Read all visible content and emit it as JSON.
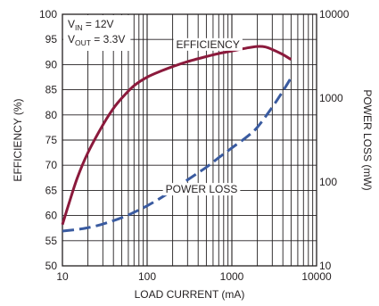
{
  "chart_data": {
    "type": "line",
    "title": "",
    "xlabel": "LOAD CURRENT (mA)",
    "ylabel": "EFFICIENCY (%)",
    "ylabel_right": "POWER LOSS (mW)",
    "x_scale": "log",
    "xlim": [
      10,
      10000
    ],
    "ylim": [
      50,
      100
    ],
    "ylim_right": [
      10,
      10000
    ],
    "y_right_scale": "log",
    "grid": true,
    "x_ticks": [
      {
        "value": 10,
        "label": "10"
      },
      {
        "value": 100,
        "label": "100"
      },
      {
        "value": 1000,
        "label": "1000"
      },
      {
        "value": 10000,
        "label": "10000"
      }
    ],
    "y_ticks": [
      {
        "value": 50,
        "label": "50"
      },
      {
        "value": 55,
        "label": "55"
      },
      {
        "value": 60,
        "label": "60"
      },
      {
        "value": 65,
        "label": "65"
      },
      {
        "value": 70,
        "label": "70"
      },
      {
        "value": 75,
        "label": "75"
      },
      {
        "value": 80,
        "label": "80"
      },
      {
        "value": 85,
        "label": "85"
      },
      {
        "value": 90,
        "label": "90"
      },
      {
        "value": 95,
        "label": "95"
      },
      {
        "value": 100,
        "label": "100"
      }
    ],
    "y_right_ticks": [
      {
        "value": 10,
        "label": "10"
      },
      {
        "value": 100,
        "label": "100"
      },
      {
        "value": 1000,
        "label": "1000"
      },
      {
        "value": 10000,
        "label": "10000"
      }
    ],
    "conditions": {
      "vin": {
        "sym": "V",
        "sub": "IN",
        "rest": " = 12V"
      },
      "vout": {
        "sym": "V",
        "sub": "OUT",
        "rest": " = 3.3V"
      }
    },
    "series": [
      {
        "name": "EFFICIENCY",
        "axis": "left",
        "color": "#8b1a3c",
        "style": "solid",
        "x": [
          10,
          12,
          15,
          20,
          30,
          40,
          50,
          70,
          100,
          150,
          200,
          300,
          500,
          700,
          1000,
          1500,
          2000,
          2500,
          3000,
          4000,
          5000
        ],
        "y": [
          58.2,
          62.5,
          67.5,
          72.5,
          78.0,
          81.3,
          83.3,
          85.8,
          87.5,
          88.8,
          89.6,
          90.6,
          91.6,
          92.2,
          92.7,
          93.3,
          93.6,
          93.5,
          93.0,
          92.0,
          91.0
        ]
      },
      {
        "name": "POWER LOSS",
        "axis": "right",
        "color": "#3a5ba0",
        "style": "dashed",
        "x": [
          10,
          15,
          20,
          30,
          50,
          70,
          100,
          150,
          200,
          300,
          500,
          700,
          1000,
          1500,
          2000,
          3000,
          4000,
          5000
        ],
        "y": [
          26,
          27.2,
          28.5,
          31.5,
          37.5,
          43.5,
          52,
          66,
          80,
          106,
          150,
          195,
          255,
          345,
          450,
          780,
          1210,
          1750
        ]
      }
    ],
    "annotations": [
      {
        "text": "EFFICIENCY",
        "series": "EFFICIENCY"
      },
      {
        "text": "POWER LOSS",
        "series": "POWER LOSS"
      }
    ]
  }
}
